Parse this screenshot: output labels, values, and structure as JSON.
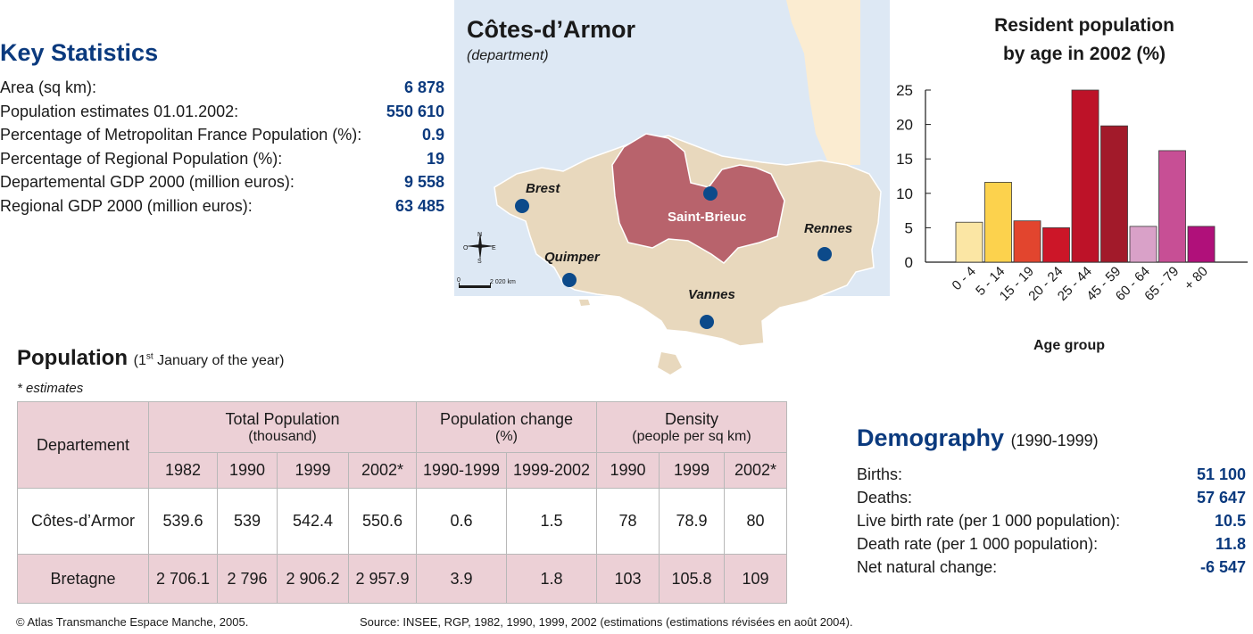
{
  "key_statistics": {
    "title": "Key Statistics",
    "rows": [
      {
        "label": "Area (sq km):",
        "value": "6 878"
      },
      {
        "label": "Population estimates 01.01.2002:",
        "value": "550 610"
      },
      {
        "label": "Percentage of Metropolitan France Population (%):",
        "value": "0.9"
      },
      {
        "label": "Percentage of Regional Population (%):",
        "value": "19"
      },
      {
        "label": "Departemental GDP 2000 (million euros):",
        "value": "9 558"
      },
      {
        "label": "Regional GDP 2000 (million euros):",
        "value": "63 485"
      }
    ]
  },
  "map": {
    "title": "Côtes-d’Armor",
    "subtitle": "(department)",
    "cities": [
      "Brest",
      "Saint-Brieuc",
      "Rennes",
      "Quimper",
      "Vannes"
    ],
    "compass": {
      "n": "N",
      "s": "S",
      "e": "E",
      "o": "O"
    },
    "scale_label": "2 020 km",
    "scale_zero": "0",
    "colors": {
      "sea": "#dde8f4",
      "land": "#e8d8bd",
      "department": "#b8636c",
      "east_land": "#fbecd1",
      "city_dot": "#0c4a8a"
    }
  },
  "chart_data": {
    "type": "bar",
    "title": "Resident population by age in 2002 (%)",
    "title_lines": [
      "Resident population",
      "by age in 2002 (%)"
    ],
    "xlabel": "Age group",
    "ylabel": "",
    "categories": [
      "0 - 4",
      "5 - 14",
      "15 - 19",
      "20 - 24",
      "25 - 44",
      "45 - 59",
      "60 - 64",
      "65 - 79",
      "+ 80"
    ],
    "values": [
      5.8,
      11.6,
      6.0,
      5.0,
      25.0,
      19.8,
      5.2,
      16.2,
      5.2
    ],
    "colors": [
      "#fbe6a4",
      "#fcd24d",
      "#e2452e",
      "#cc1628",
      "#bd1228",
      "#a21a2a",
      "#d9a1c8",
      "#c74f95",
      "#b0107a"
    ],
    "ylim": [
      0,
      25
    ],
    "yticks": [
      0,
      5,
      10,
      15,
      20,
      25
    ],
    "grid": false
  },
  "population": {
    "title": "Population",
    "subtitle_pre": "(1",
    "subtitle_sup": "st",
    "subtitle_post": " January of the year)",
    "note": "* estimates",
    "headers": {
      "departement": "Departement",
      "total": "Total Population",
      "total_unit": "(thousand)",
      "change": "Population change",
      "change_unit": "(%)",
      "density": "Density",
      "density_unit": "(people per sq km)",
      "years": [
        "1982",
        "1990",
        "1999",
        "2002*",
        "1990-1999",
        "1999-2002",
        "1990",
        "1999",
        "2002*"
      ]
    },
    "rows": [
      {
        "name": "Côtes-d’Armor",
        "values": [
          "539.6",
          "539",
          "542.4",
          "550.6",
          "0.6",
          "1.5",
          "78",
          "78.9",
          "80"
        ]
      },
      {
        "name": "Bretagne",
        "values": [
          "2 706.1",
          "2 796",
          "2 906.2",
          "2 957.9",
          "3.9",
          "1.8",
          "103",
          "105.8",
          "109"
        ]
      }
    ]
  },
  "demography": {
    "title": "Demography",
    "period": "(1990-1999)",
    "rows": [
      {
        "label": "Births:",
        "value": "51 100"
      },
      {
        "label": "Deaths:",
        "value": "57 647"
      },
      {
        "label": "Live birth rate (per 1 000 population):",
        "value": "10.5"
      },
      {
        "label": "Death rate (per 1 000 population):",
        "value": "11.8"
      },
      {
        "label": "Net natural change:",
        "value": "-6 547"
      }
    ]
  },
  "footer": {
    "copyright": "© Atlas Transmanche Espace Manche, 2005.",
    "source": "Source: INSEE, RGP, 1982, 1990, 1999, 2002 (estimations (estimations révisées en août 2004)."
  }
}
